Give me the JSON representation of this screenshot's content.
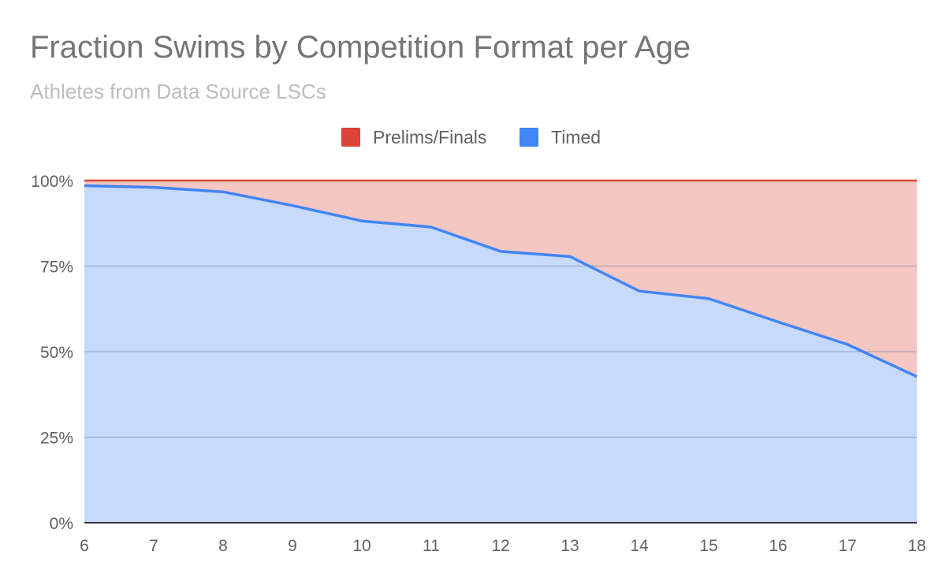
{
  "title": "Fraction Swims by Competition Format per Age",
  "subtitle": "Athletes from Data Source LSCs",
  "chart_data": {
    "type": "area",
    "stacked": "percent",
    "title": "Fraction Swims by Competition Format per Age",
    "subtitle": "Athletes from Data Source LSCs",
    "xlabel": "",
    "ylabel": "",
    "legend_position": "top",
    "x": [
      6,
      7,
      8,
      9,
      10,
      11,
      12,
      13,
      14,
      15,
      16,
      17,
      18
    ],
    "x_tick_labels": [
      "6",
      "7",
      "8",
      "9",
      "10",
      "11",
      "12",
      "13",
      "14",
      "15",
      "16",
      "17",
      "18"
    ],
    "ylim": [
      0,
      100
    ],
    "y_tick_values": [
      0,
      25,
      50,
      75,
      100
    ],
    "y_tick_labels": [
      "0%",
      "25%",
      "50%",
      "75%",
      "100%"
    ],
    "grid": true,
    "series": [
      {
        "name": "Prelims/Finals",
        "color": "#db4437",
        "fill_color": "#f4c7c3",
        "values": [
          1.5,
          2.0,
          3.3,
          7.3,
          11.8,
          13.6,
          20.7,
          22.2,
          32.3,
          34.5,
          41.3,
          47.9,
          57.3
        ]
      },
      {
        "name": "Timed",
        "color": "#4285f4",
        "fill_color": "#c6dafc",
        "values": [
          98.5,
          98.0,
          96.7,
          92.7,
          88.2,
          86.4,
          79.3,
          77.8,
          67.7,
          65.5,
          58.7,
          52.1,
          42.7
        ]
      }
    ]
  }
}
